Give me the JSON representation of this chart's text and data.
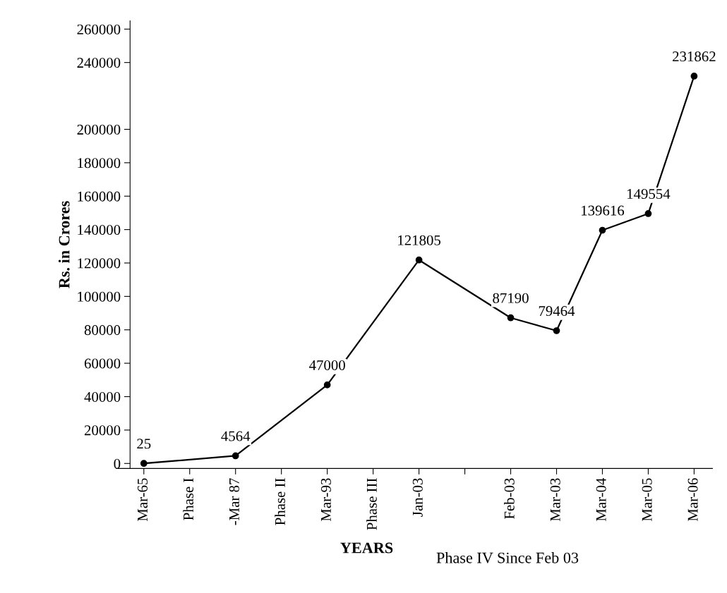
{
  "chart_data": {
    "type": "line",
    "xlabel": "YEARS",
    "ylabel": "Rs. in Crores",
    "annotations": [
      "Phase IV Since Feb 03"
    ],
    "categories": [
      "Mar-65",
      "Phase I",
      "-Mar 87",
      "Phase II",
      "Mar-93",
      "Phase III",
      "Jan-03",
      null,
      "Feb-03",
      "Mar-03",
      "Mar-04",
      "Mar-05",
      "Mar-06"
    ],
    "series": [
      {
        "color": "#000000",
        "values": [
          25,
          null,
          4564,
          null,
          47000,
          null,
          121805,
          null,
          87190,
          79464,
          139616,
          149554,
          231862
        ]
      }
    ],
    "ylim": [
      -3000,
      265000
    ],
    "yticks": [
      0,
      20000,
      40000,
      60000,
      80000,
      100000,
      120000,
      140000,
      160000,
      180000,
      200000,
      240000,
      260000
    ],
    "data_labels": true,
    "marker": "circle",
    "line_style": "solid",
    "grid": false,
    "legend": false
  }
}
